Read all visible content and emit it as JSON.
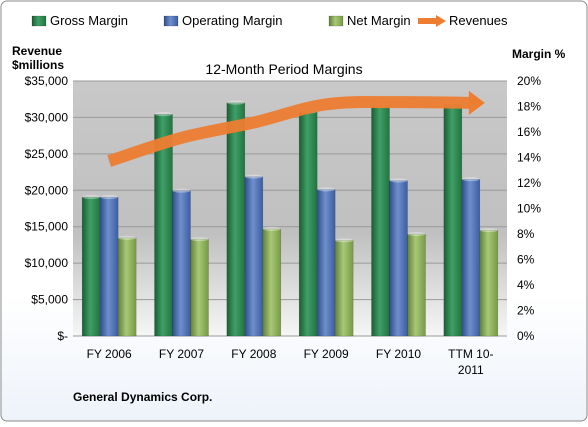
{
  "chart_data": {
    "type": "bar",
    "title": "12-Month Period Margins",
    "company": "General Dynamics Corp.",
    "left_axis_label": [
      "Revenue",
      "$millions"
    ],
    "right_axis_label": "Margin %",
    "categories": [
      [
        "FY 2006"
      ],
      [
        "FY 2007"
      ],
      [
        "FY 2008"
      ],
      [
        "FY 2009"
      ],
      [
        "FY 2010"
      ],
      [
        "TTM 10-",
        "2011"
      ]
    ],
    "y_left": {
      "min": 0,
      "max": 35000,
      "step": 5000,
      "ticks": [
        "$-",
        "$5,000",
        "$10,000",
        "$15,000",
        "$20,000",
        "$25,000",
        "$30,000",
        "$35,000"
      ]
    },
    "y_right": {
      "min": 0,
      "max": 20,
      "step": 2,
      "ticks": [
        "0%",
        "2%",
        "4%",
        "6%",
        "8%",
        "10%",
        "12%",
        "14%",
        "16%",
        "18%",
        "20%"
      ]
    },
    "series": [
      {
        "name": "Gross Margin",
        "kind": "bar",
        "axis": "right",
        "color": "#2e8b57",
        "values": [
          10.9,
          17.4,
          18.3,
          17.6,
          18.1,
          18.2
        ]
      },
      {
        "name": "Operating Margin",
        "kind": "bar",
        "axis": "right",
        "color": "#4f72b8",
        "values": [
          10.9,
          11.4,
          12.5,
          11.5,
          12.2,
          12.3
        ]
      },
      {
        "name": "Net Margin",
        "kind": "bar",
        "axis": "right",
        "color": "#8fb153",
        "values": [
          7.7,
          7.6,
          8.4,
          7.5,
          8.0,
          8.3
        ]
      },
      {
        "name": "Revenues",
        "kind": "line-arrow",
        "axis": "left",
        "color": "#ed7d31",
        "values": [
          24000,
          27200,
          29300,
          31800,
          32100,
          32000
        ]
      }
    ],
    "grid": true,
    "legend_position": "top"
  }
}
